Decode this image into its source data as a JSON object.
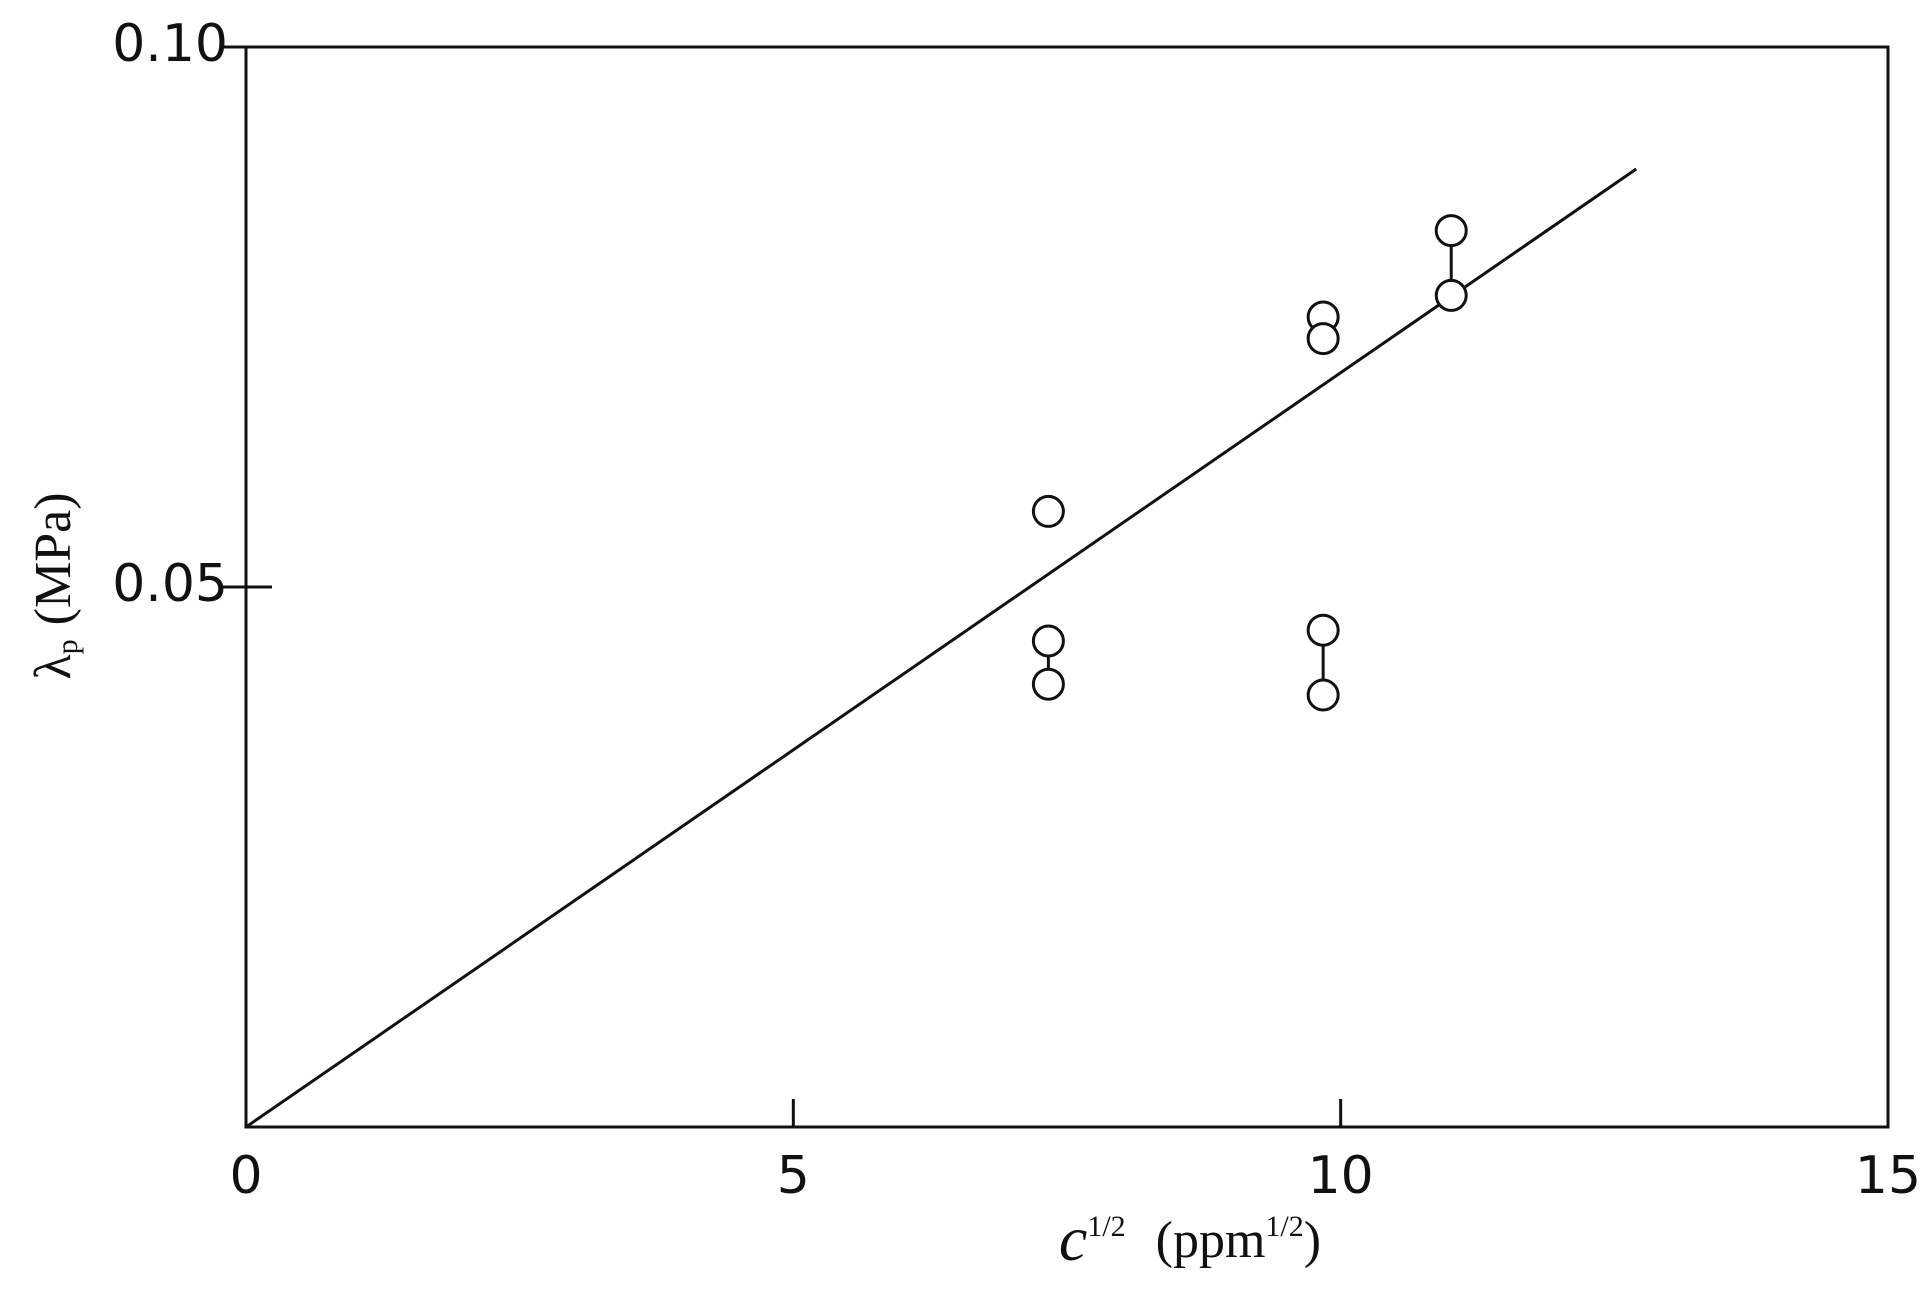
{
  "chart_data": {
    "type": "scatter",
    "x_label": {
      "symbol": "c",
      "sup": "1/2",
      "unit": "(ppm",
      "unit_sup": "1/2",
      "close": ")"
    },
    "y_label": {
      "symbol": "λ",
      "sub": "p",
      "unit": "(MPa)"
    },
    "xlim": [
      0,
      15
    ],
    "xticks": [
      0,
      5,
      10,
      15
    ],
    "ylim": [
      0,
      0.1
    ],
    "yticks": [
      0.05,
      {
        "value": 0.1,
        "label": "0.10"
      }
    ],
    "series": [
      {
        "x": [
          7.33
        ],
        "y": [
          0.057
        ]
      },
      {
        "x": [
          7.33,
          7.33
        ],
        "y": [
          0.045,
          0.041
        ]
      },
      {
        "x": [
          9.84,
          9.84
        ],
        "y": [
          0.075,
          0.073
        ]
      },
      {
        "x": [
          9.84,
          9.84
        ],
        "y": [
          0.046,
          0.04
        ]
      },
      {
        "x": [
          11.01,
          11.01
        ],
        "y": [
          0.083,
          0.077
        ]
      }
    ],
    "fit_line": {
      "x": [
        0,
        12.7
      ],
      "y": [
        0,
        0.0887
      ]
    }
  }
}
